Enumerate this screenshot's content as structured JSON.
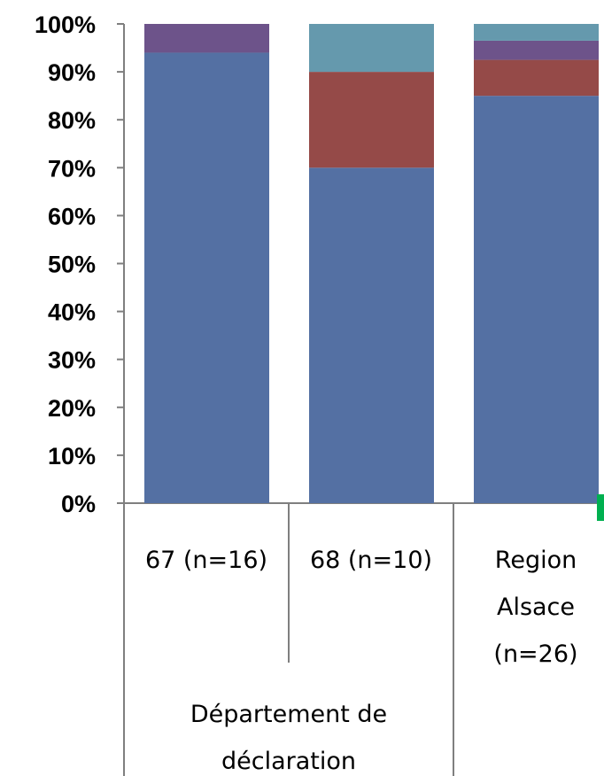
{
  "chart_data": {
    "type": "bar",
    "stacked": true,
    "normalized": true,
    "ylim": [
      0,
      100
    ],
    "yticks": [
      "0%",
      "10%",
      "20%",
      "30%",
      "40%",
      "50%",
      "60%",
      "70%",
      "80%",
      "90%",
      "100%"
    ],
    "group_label": [
      "Département de",
      "déclaration"
    ],
    "categories": [
      {
        "label": [
          "67 (n=16)"
        ]
      },
      {
        "label": [
          "68 (n=10)"
        ]
      },
      {
        "label": [
          "Region",
          "Alsace",
          "(n=26)"
        ]
      }
    ],
    "series": [
      {
        "color": "#5470a3",
        "values": [
          94,
          70,
          85
        ]
      },
      {
        "color": "#954a48",
        "values": [
          0,
          20,
          7.5
        ]
      },
      {
        "color": "#6d538a",
        "values": [
          6,
          0,
          4
        ]
      },
      {
        "color": "#6599ad",
        "values": [
          0,
          10,
          3.5
        ]
      }
    ],
    "grid": false,
    "legend": "none"
  }
}
